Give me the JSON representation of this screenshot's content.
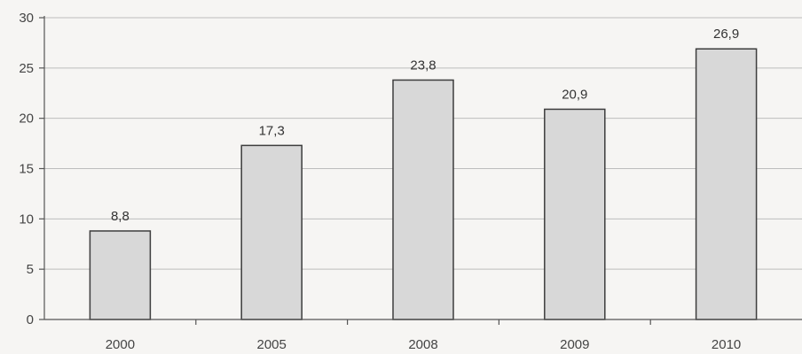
{
  "chart_data": {
    "type": "bar",
    "title": "",
    "xlabel": "",
    "ylabel": "",
    "categories": [
      "2000",
      "2005",
      "2008",
      "2009",
      "2010"
    ],
    "values": [
      8.8,
      17.3,
      23.8,
      20.9,
      26.9
    ],
    "value_labels": [
      "8,8",
      "17,3",
      "23,8",
      "20,9",
      "26,9"
    ],
    "ylim": [
      0,
      30
    ],
    "yticks": [
      0,
      5,
      10,
      15,
      20,
      25,
      30
    ],
    "ytick_labels": [
      "0",
      "5",
      "10",
      "15",
      "20",
      "25",
      "30"
    ],
    "grid": true,
    "legend": "none",
    "colors": {
      "bar_fill": "#d8d8d8",
      "bar_stroke": "#3d3d3d",
      "grid": "#bdbdbd",
      "background": "#f6f5f3"
    }
  }
}
